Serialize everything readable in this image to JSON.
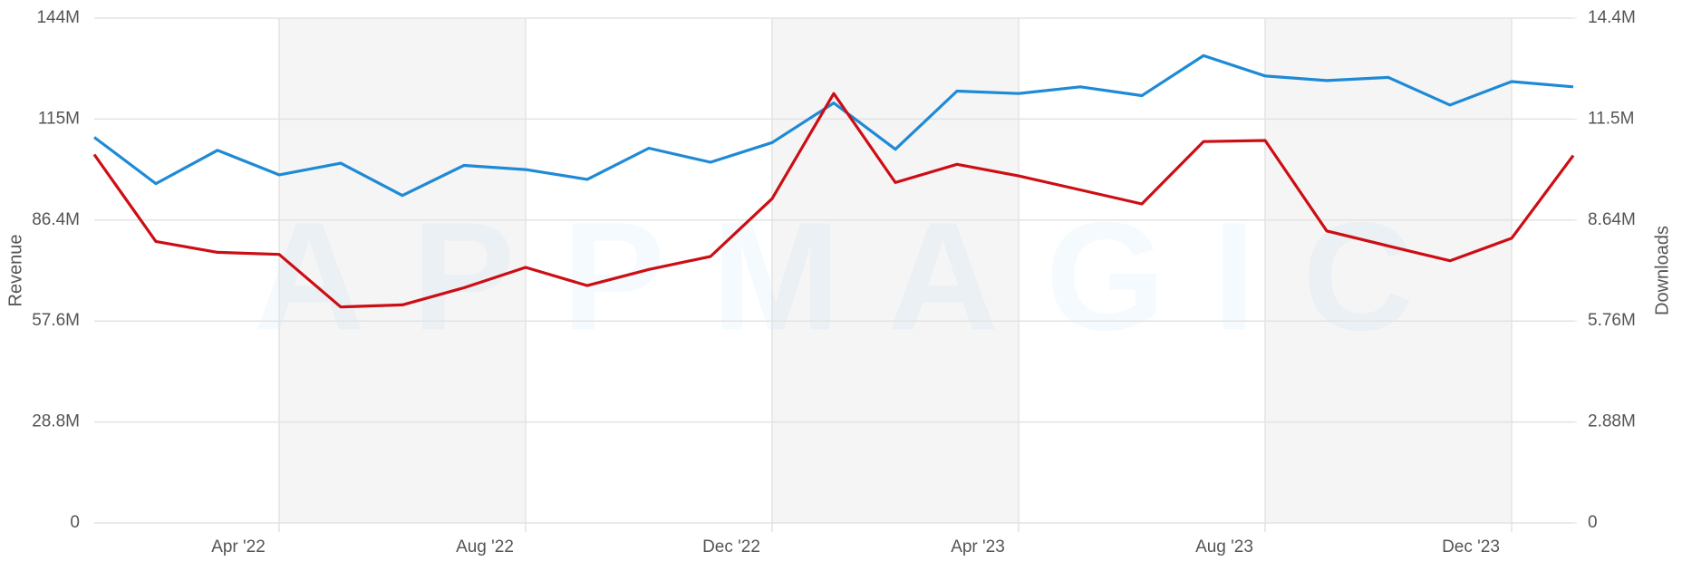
{
  "chart_data": {
    "type": "line",
    "watermark": "APPMAGIC",
    "ylabel": "Revenue",
    "y2label": "Downloads",
    "categories": [
      null,
      null,
      null,
      "Apr '22",
      null,
      null,
      null,
      "Aug '22",
      null,
      null,
      null,
      "Dec '22",
      null,
      null,
      null,
      "Apr '23",
      null,
      null,
      null,
      "Aug '23",
      null,
      null,
      null,
      "Dec '23",
      null
    ],
    "series": [
      {
        "name": "Revenue",
        "color": "#1e8ad6",
        "axis": "y",
        "values": [
          110.0,
          96.8,
          106.3,
          99.3,
          102.6,
          93.4,
          102.0,
          100.8,
          98.0,
          106.9,
          102.9,
          108.5,
          119.8,
          106.6,
          123.2,
          122.5,
          124.4,
          121.9,
          133.3,
          127.5,
          126.2,
          127.1,
          119.2,
          125.9,
          124.4
        ]
      },
      {
        "name": "Downloads",
        "color": "#cc0e14",
        "axis": "y2",
        "values": [
          10.51,
          8.03,
          7.72,
          7.66,
          6.16,
          6.22,
          6.71,
          7.29,
          6.77,
          7.23,
          7.6,
          9.25,
          12.25,
          9.71,
          10.23,
          9.9,
          9.5,
          9.1,
          10.88,
          10.91,
          8.33,
          7.9,
          7.48,
          8.12,
          10.48
        ]
      }
    ],
    "ylim": [
      0,
      144
    ],
    "yticks": [
      0,
      {
        "value": 28.8,
        "label": "28.8M"
      },
      {
        "value": 57.6,
        "label": "57.6M"
      },
      {
        "value": 86.4,
        "label": "86.4M"
      },
      {
        "value": 115.2,
        "label": "115M"
      },
      {
        "value": 144,
        "label": "144M"
      }
    ],
    "y2lim": [
      0,
      14.4
    ],
    "y2ticks": [
      0,
      {
        "value": 2.88,
        "label": "2.88M"
      },
      {
        "value": 5.76,
        "label": "5.76M"
      },
      {
        "value": 8.64,
        "label": "8.64M"
      },
      {
        "value": 11.52,
        "label": "11.5M"
      },
      {
        "value": 14.4,
        "label": "14.4M"
      }
    ],
    "grid": true
  }
}
